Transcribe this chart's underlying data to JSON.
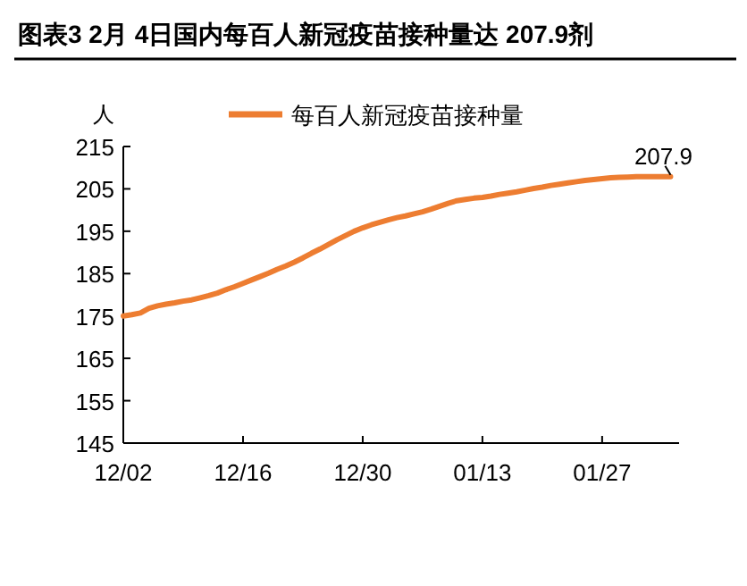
{
  "chart_data": {
    "type": "line",
    "title": "图表3    2月 4日国内每百人新冠疫苗接种量达 207.9剂",
    "ylabel": "人",
    "categories": [
      "12/02",
      null,
      null,
      null,
      null,
      null,
      null,
      null,
      null,
      null,
      null,
      null,
      null,
      null,
      "12/16",
      null,
      null,
      null,
      null,
      null,
      null,
      null,
      null,
      null,
      null,
      null,
      null,
      null,
      "12/30",
      null,
      null,
      null,
      null,
      null,
      null,
      null,
      null,
      null,
      null,
      null,
      null,
      null,
      "01/13",
      null,
      null,
      null,
      null,
      null,
      null,
      null,
      null,
      null,
      null,
      null,
      null,
      null,
      "01/27",
      null,
      null,
      null,
      null,
      null,
      null,
      null,
      null
    ],
    "series": [
      {
        "name": "每百人新冠疫苗接种量",
        "color": "#ed7d31",
        "values": [
          175,
          175.3,
          175.7,
          176.8,
          177.4,
          177.8,
          178.1,
          178.5,
          178.8,
          179.3,
          179.8,
          180.4,
          181.2,
          181.9,
          182.7,
          183.5,
          184.3,
          185.1,
          186,
          186.8,
          187.7,
          188.7,
          189.8,
          190.8,
          191.9,
          193,
          194,
          195,
          195.8,
          196.5,
          197.1,
          197.7,
          198.2,
          198.6,
          199.1,
          199.6,
          200.2,
          200.9,
          201.6,
          202.2,
          202.5,
          202.8,
          203,
          203.3,
          203.7,
          204,
          204.3,
          204.7,
          205.1,
          205.4,
          205.8,
          206.1,
          206.4,
          206.7,
          207,
          207.2,
          207.4,
          207.6,
          207.7,
          207.8,
          207.9,
          207.9,
          207.9,
          207.9,
          207.9
        ]
      }
    ],
    "ylim": [
      145,
      215
    ],
    "yticks": [
      145,
      155,
      165,
      175,
      185,
      195,
      205,
      215
    ],
    "annotations": [
      {
        "text": "207.9",
        "y": 207.9
      }
    ],
    "grid": false,
    "legend": "top",
    "marker": "none",
    "line_style": "solid"
  }
}
